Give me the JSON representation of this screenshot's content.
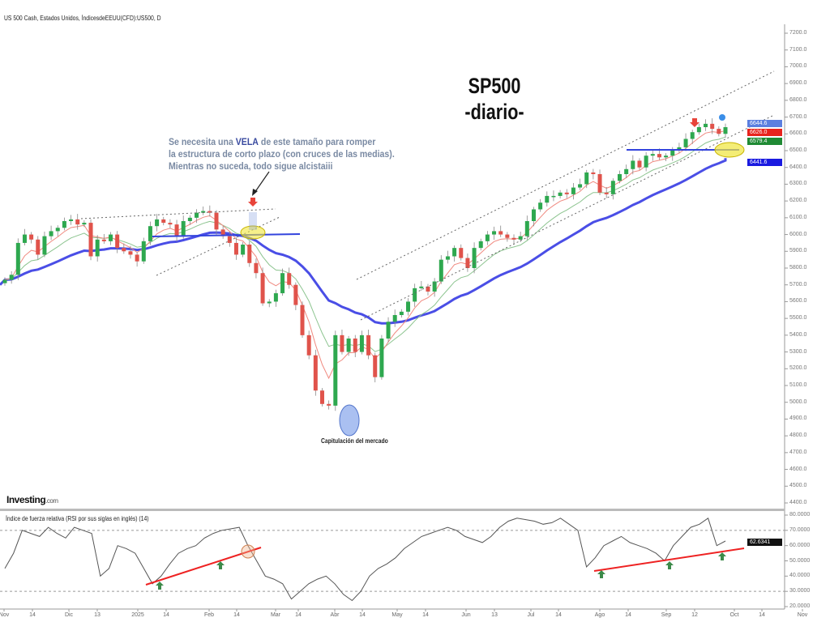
{
  "header": {
    "title": "US 500 Cash, Estados Unidos, ÍndicesdeEEUU(CFD):US500, D"
  },
  "annotations": {
    "title_line1": "SP500",
    "title_line2": "-diario-",
    "note_line1_a": "Se necesita una ",
    "note_line1_b": "VELA",
    "note_line1_c": " de este tamaño para romper",
    "note_line2": "la estructura de corto plazo (con cruces de las medias).",
    "note_line3": "Mientras no suceda, todo sigue alcistaiii",
    "capitulation": "Capitulación del mercado"
  },
  "logo": {
    "name": "Investing",
    "suffix": ".com"
  },
  "colors": {
    "up": "#2ea84f",
    "down": "#e0534b",
    "ma_fast": "#f08a80",
    "ma_mid": "#8cc48f",
    "ma_slow": "#4a4ee6",
    "rsi": "#555555",
    "trend_red": "#ee2222"
  },
  "chart_data": [
    {
      "type": "candlestick",
      "title": "US 500 Cash, D",
      "ylim": [
        4400,
        7200
      ],
      "y_ticks": [
        "7200.0",
        "7100.0",
        "7000.0",
        "6900.0",
        "6800.0",
        "6700.0",
        "6600.0",
        "6500.0",
        "6400.0",
        "6300.0",
        "6200.0",
        "6100.0",
        "6000.0",
        "5900.0",
        "5800.0",
        "5700.0",
        "5600.0",
        "5500.0",
        "5400.0",
        "5300.0",
        "5200.0",
        "5100.0",
        "5000.0",
        "4900.0",
        "4800.0",
        "4700.0",
        "4600.0",
        "4500.0",
        "4400.0"
      ],
      "x_ticks": [
        "Nov",
        "14",
        "Dic",
        "13",
        "2025",
        "14",
        "Feb",
        "14",
        "Mar",
        "14",
        "Abr",
        "14",
        "May",
        "14",
        "Jun",
        "13",
        "Jul",
        "14",
        "Ago",
        "14",
        "Sep",
        "12",
        "Oct",
        "14",
        "Nov"
      ],
      "closes": [
        5730,
        5760,
        5950,
        6000,
        5970,
        5880,
        5990,
        6020,
        6040,
        6080,
        6090,
        6060,
        6070,
        5870,
        5970,
        5960,
        6000,
        5920,
        5900,
        5880,
        5840,
        5960,
        6050,
        6090,
        6070,
        6060,
        5990,
        6080,
        6100,
        6130,
        6140,
        6130,
        6030,
        5990,
        5950,
        5880,
        5940,
        5830,
        5770,
        5590,
        5600,
        5650,
        5770,
        5700,
        5580,
        5400,
        5280,
        5070,
        4990,
        4980,
        5400,
        5300,
        5380,
        5300,
        5400,
        5280,
        5150,
        5380,
        5480,
        5520,
        5540,
        5600,
        5680,
        5690,
        5660,
        5720,
        5850,
        5870,
        5920,
        5860,
        5800,
        5920,
        5960,
        6000,
        6020,
        6000,
        5980,
        5970,
        5990,
        6080,
        6150,
        6190,
        6230,
        6230,
        6250,
        6240,
        6280,
        6300,
        6370,
        6360,
        6250,
        6240,
        6320,
        6360,
        6390,
        6440,
        6400,
        6470,
        6480,
        6460,
        6470,
        6500,
        6520,
        6570,
        6610,
        6640,
        6660,
        6630,
        6600,
        6640
      ],
      "price_labels": [
        {
          "value": "6644.6",
          "color": "#5b7fe0"
        },
        {
          "value": "6626.0",
          "color": "#e8231d"
        },
        {
          "value": "6579.4",
          "color": "#1f8a34"
        },
        {
          "value": "6441.6",
          "color": "#1a1ae0"
        }
      ]
    },
    {
      "type": "line",
      "title": "Índice de fuerza relativa (RSI por sus siglas en inglés) (14)",
      "ylim": [
        20,
        80
      ],
      "y_ticks": [
        "80.0000",
        "70.0000",
        "60.0000",
        "50.0000",
        "40.0000",
        "30.0000",
        "20.0000"
      ],
      "levels": [
        70,
        30
      ],
      "current": "62.6341",
      "values": [
        45,
        55,
        70,
        68,
        66,
        72,
        68,
        65,
        72,
        70,
        68,
        40,
        45,
        60,
        58,
        55,
        45,
        35,
        40,
        48,
        55,
        58,
        60,
        65,
        68,
        70,
        71,
        72,
        60,
        50,
        40,
        38,
        35,
        25,
        30,
        35,
        38,
        40,
        35,
        28,
        24,
        30,
        40,
        45,
        48,
        52,
        58,
        62,
        66,
        68,
        70,
        72,
        70,
        66,
        64,
        62,
        66,
        72,
        76,
        78,
        77,
        76,
        74,
        75,
        78,
        74,
        70,
        46,
        52,
        60,
        63,
        66,
        62,
        60,
        58,
        55,
        50,
        60,
        66,
        72,
        74,
        78,
        60,
        63
      ]
    }
  ]
}
